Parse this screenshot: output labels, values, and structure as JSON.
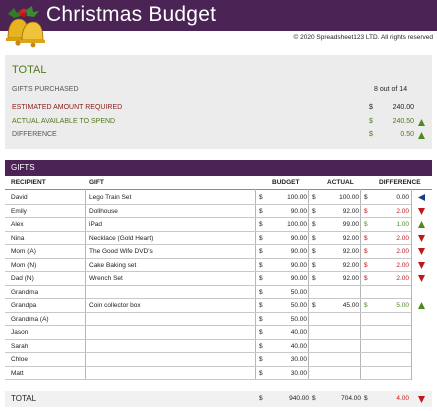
{
  "header": {
    "title": "Christmas Budget",
    "copyright": "© 2020 Spreadsheet123 LTD. All rights reserved"
  },
  "summary": {
    "title": "TOTAL",
    "gifts_purchased_label": "GIFTS PURCHASED",
    "gifts_purchased_value": "8 out of 14",
    "estimated_label": "ESTIMATED AMOUNT REQUIRED",
    "estimated_cur": "$",
    "estimated_value": "240.00",
    "actual_label": "ACTUAL AVAILABLE TO SPEND",
    "actual_cur": "$",
    "actual_value": "240.50",
    "difference_label": "DIFFERENCE",
    "difference_cur": "$",
    "difference_value": "0.50"
  },
  "gifts": {
    "title": "GIFTS",
    "columns": {
      "recipient": "RECIPIENT",
      "gift": "GIFT",
      "budget": "BUDGET",
      "actual": "ACTUAL",
      "difference": "DIFFERENCE"
    },
    "rows": [
      {
        "recipient": "David",
        "gift": "Lego Train Set",
        "budget": "100.00",
        "actual": "100.00",
        "difference": "0.00",
        "trend": "left"
      },
      {
        "recipient": "Emily",
        "gift": "Dollhouse",
        "budget": "90.00",
        "actual": "92.00",
        "difference": "2.00",
        "trend": "down"
      },
      {
        "recipient": "Alex",
        "gift": "iPad",
        "budget": "100.00",
        "actual": "99.00",
        "difference": "1.00",
        "trend": "up"
      },
      {
        "recipient": "Nina",
        "gift": "Necklace (Gold Heart)",
        "budget": "90.00",
        "actual": "92.00",
        "difference": "2.00",
        "trend": "down"
      },
      {
        "recipient": "Mom (A)",
        "gift": "The Good Wife DVD's",
        "budget": "90.00",
        "actual": "92.00",
        "difference": "2.00",
        "trend": "down"
      },
      {
        "recipient": "Mom (N)",
        "gift": "Cake Baking set",
        "budget": "90.00",
        "actual": "92.00",
        "difference": "2.00",
        "trend": "down"
      },
      {
        "recipient": "Dad (N)",
        "gift": "Wrench Set",
        "budget": "90.00",
        "actual": "92.00",
        "difference": "2.00",
        "trend": "down"
      },
      {
        "recipient": "Grandma",
        "gift": "",
        "budget": "50.00",
        "actual": "",
        "difference": "",
        "trend": ""
      },
      {
        "recipient": "Grandpa",
        "gift": "Coin collector box",
        "budget": "50.00",
        "actual": "45.00",
        "difference": "5.00",
        "trend": "up"
      },
      {
        "recipient": "Grandma (A)",
        "gift": "",
        "budget": "50.00",
        "actual": "",
        "difference": "",
        "trend": ""
      },
      {
        "recipient": "Jason",
        "gift": "",
        "budget": "40.00",
        "actual": "",
        "difference": "",
        "trend": ""
      },
      {
        "recipient": "Sarah",
        "gift": "",
        "budget": "40.00",
        "actual": "",
        "difference": "",
        "trend": ""
      },
      {
        "recipient": "Chloe",
        "gift": "",
        "budget": "30.00",
        "actual": "",
        "difference": "",
        "trend": ""
      },
      {
        "recipient": "Matt",
        "gift": "",
        "budget": "30.00",
        "actual": "",
        "difference": "",
        "trend": ""
      }
    ],
    "currency": "$",
    "total_label": "TOTAL",
    "total_budget": "940.00",
    "total_actual": "704.00",
    "total_difference": "4.00",
    "total_trend": "down"
  },
  "colors": {
    "banner": "#4b2355",
    "panel": "#ececec",
    "green_text": "#4f7a1c",
    "red_text": "#8b1a1a",
    "arrow_red": "#c0171b",
    "arrow_green": "#4f8a1c",
    "arrow_blue": "#203a8a"
  },
  "icons": {
    "logo": "christmas-bells-icon",
    "up": "arrow-up-icon",
    "down": "arrow-down-icon",
    "left": "arrow-left-icon"
  }
}
